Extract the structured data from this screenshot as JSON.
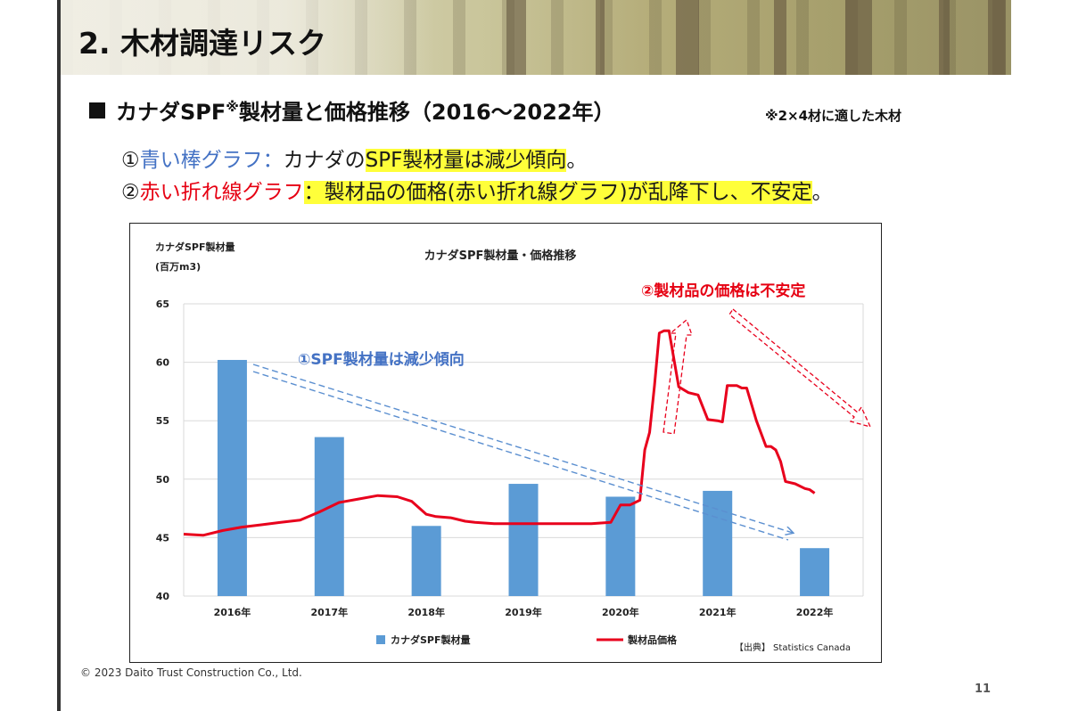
{
  "slide": {
    "title": "2. 木材調達リスク",
    "subtitle_main": "カナダSPF",
    "subtitle_sup": "※",
    "subtitle_rest": "製材量と価格推移（2016～2022年）",
    "note": "※2×4材に適した木材",
    "line1": {
      "prefix": "①",
      "colored": "青い棒グラフ：",
      "mid": "カナダの",
      "highlight": "SPF製材量は減少傾向",
      "suffix": "。"
    },
    "line2": {
      "prefix": "②",
      "colored": "赤い折れ線グラフ",
      "colon": "：",
      "highlight": "製材品の価格(赤い折れ線グラフ)が乱降下し、不安定",
      "suffix": "。"
    },
    "copyright": "© 2023 Daito Trust Construction Co., Ltd.",
    "page_number": "11"
  },
  "colors": {
    "bar": "#5b9bd5",
    "line": "#e8001c",
    "blue_text": "#4472c4",
    "red_text": "#e60012",
    "highlight": "#ffff3a"
  },
  "chart_data": {
    "type": "bar",
    "title": "カナダSPF製材量・価格推移",
    "ylabel": "カナダSPF製材量",
    "yunit": "(百万m3)",
    "ylim": [
      40,
      65
    ],
    "yticks": [
      40,
      45,
      50,
      55,
      60,
      65
    ],
    "grid": true,
    "categories": [
      "2016年",
      "2017年",
      "2018年",
      "2019年",
      "2020年",
      "2021年",
      "2022年"
    ],
    "series": [
      {
        "name": "カナダSPF製材量",
        "type": "bar",
        "values": [
          60.2,
          53.6,
          46.0,
          49.6,
          48.5,
          49.0,
          44.1
        ]
      },
      {
        "name": "製材品価格",
        "type": "line",
        "x": [
          0.0,
          0.2,
          0.4,
          0.6,
          0.8,
          1.0,
          1.2,
          1.4,
          1.6,
          1.8,
          2.0,
          2.2,
          2.35,
          2.5,
          2.6,
          2.75,
          2.9,
          3.0,
          3.2,
          3.5,
          3.8,
          4.0,
          4.2,
          4.4,
          4.5,
          4.6,
          4.7,
          4.75,
          4.8,
          4.85,
          4.9,
          4.95,
          5.0,
          5.1,
          5.2,
          5.3,
          5.4,
          5.5,
          5.55,
          5.6,
          5.7,
          5.75,
          5.8,
          5.9,
          6.0,
          6.05,
          6.1,
          6.15,
          6.2,
          6.3,
          6.4,
          6.45,
          6.5
        ],
        "values": [
          45.3,
          45.2,
          45.6,
          45.9,
          46.1,
          46.3,
          46.5,
          47.2,
          48.0,
          48.3,
          48.6,
          48.5,
          48.1,
          47.0,
          46.8,
          46.7,
          46.4,
          46.3,
          46.2,
          46.2,
          46.2,
          46.2,
          46.2,
          46.3,
          47.8,
          47.8,
          48.2,
          52.5,
          54.0,
          58.0,
          62.5,
          62.7,
          62.7,
          57.9,
          57.4,
          57.2,
          55.1,
          55.0,
          54.9,
          58.0,
          58.0,
          57.8,
          57.8,
          55.0,
          52.8,
          52.8,
          52.5,
          51.5,
          49.8,
          49.6,
          49.2,
          49.1,
          48.8
        ]
      }
    ],
    "legend": {
      "placement": "bottom",
      "bar_label": "カナダSPF製材量",
      "line_label": "製材品価格"
    },
    "annotations": [
      {
        "text": "①SPF製材量は減少傾向",
        "color": "#4472c4"
      },
      {
        "text": "②製材品の価格は不安定",
        "color": "#e60012"
      }
    ],
    "source": "【出典】 Statistics Canada"
  }
}
